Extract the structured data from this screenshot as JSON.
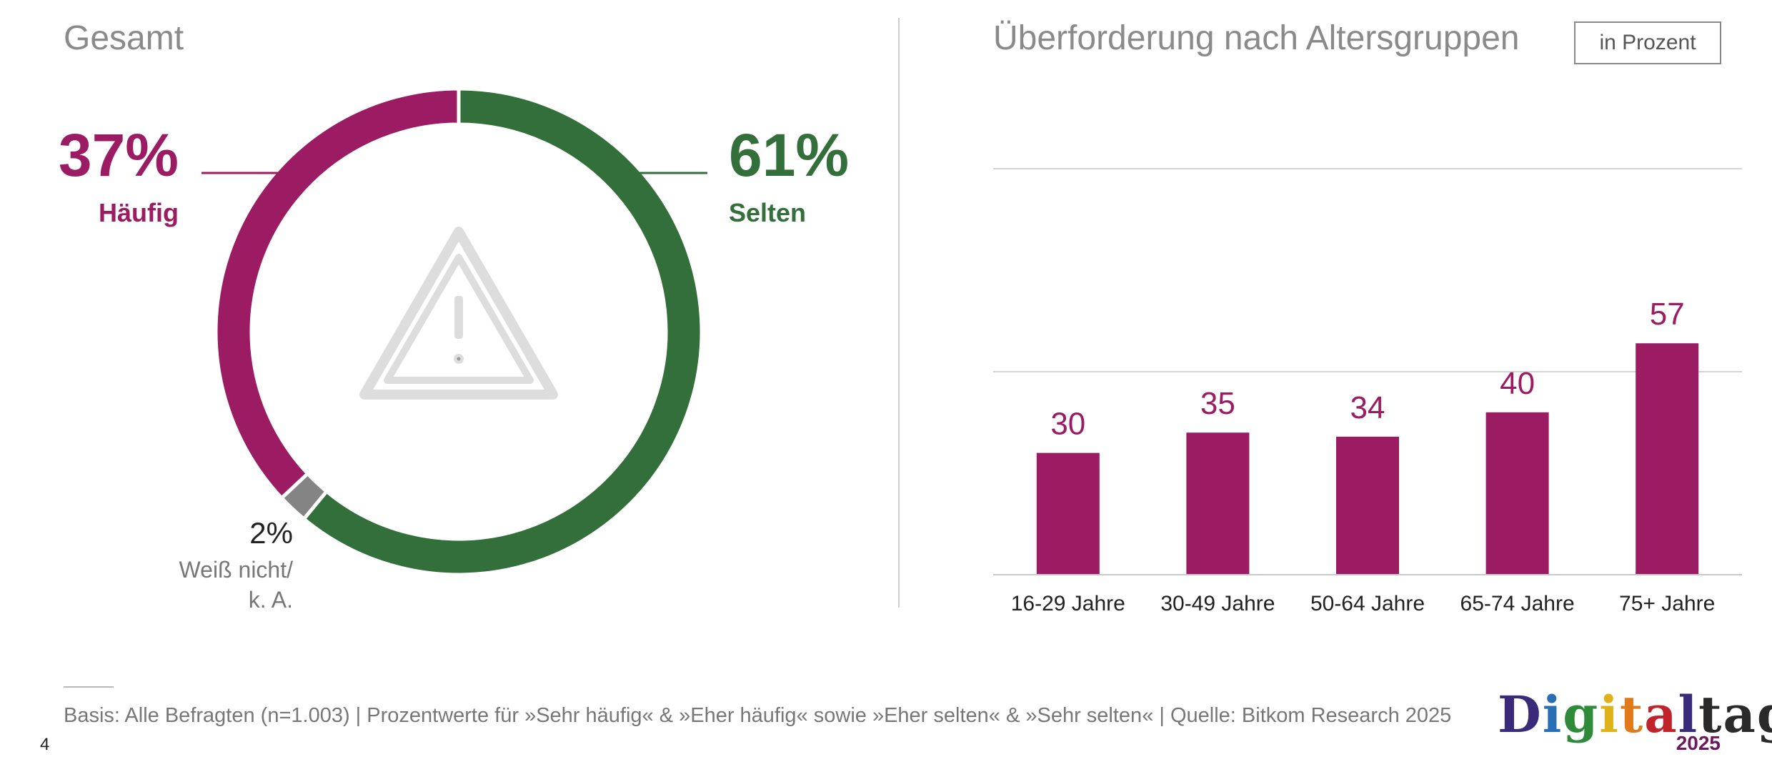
{
  "left": {
    "title": "Gesamt"
  },
  "right": {
    "title": "Überforderung nach Altersgruppen",
    "unit": "in Prozent"
  },
  "footnote": "Basis: Alle Befragten (n=1.003) | Prozentwerte für »Sehr häufig« & »Eher häufig«  sowie »Eher selten« & »Sehr selten« | Quelle: Bitkom Research 2025",
  "page_number": "4",
  "logo": {
    "word": "Digitaltag",
    "year": "2025"
  },
  "icons": {
    "center": "warning-triangle-icon"
  },
  "colors": {
    "haeufig": "#9b1c62",
    "selten": "#336f3a",
    "weiss_nicht": "#848484",
    "gridline": "#d4d4d4"
  },
  "chart_data": [
    {
      "type": "pie",
      "title": "Gesamt",
      "donut": true,
      "slices": [
        {
          "label": "Selten",
          "value": 61,
          "display": "61%",
          "color": "#336f3a"
        },
        {
          "label": "Weiß nicht/ k. A.",
          "label_lines": [
            "Weiß nicht/",
            "k. A."
          ],
          "value": 2,
          "display": "2%",
          "color": "#848484"
        },
        {
          "label": "Häufig",
          "value": 37,
          "display": "37%",
          "color": "#9b1c62"
        }
      ]
    },
    {
      "type": "bar",
      "title": "Überforderung nach Altersgruppen",
      "unit": "in Prozent",
      "categories": [
        "16-29 Jahre",
        "30-49 Jahre",
        "50-64 Jahre",
        "65-74 Jahre",
        "75+ Jahre"
      ],
      "values": [
        30,
        35,
        34,
        40,
        57
      ],
      "ylim": [
        0,
        100
      ],
      "grid": true,
      "color": "#9b1c62"
    }
  ]
}
